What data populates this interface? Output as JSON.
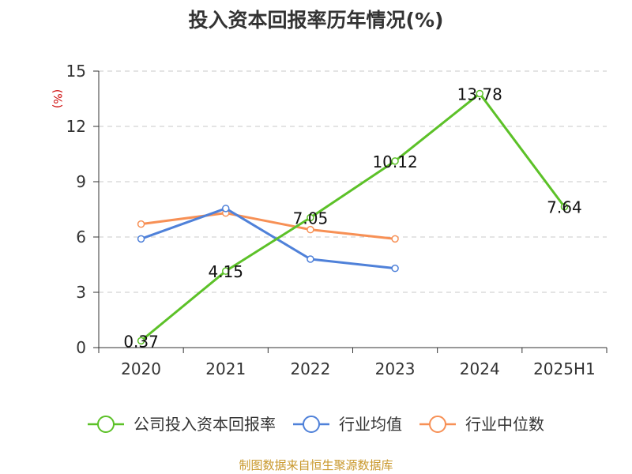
{
  "chart_data": {
    "type": "line",
    "title": "投入资本回报率历年情况(%)",
    "ylabel": "(%)",
    "xlabel": "",
    "categories": [
      "2020",
      "2021",
      "2022",
      "2023",
      "2024",
      "2025H1"
    ],
    "ylim": [
      0,
      15
    ],
    "yticks": [
      "0",
      "3",
      "6",
      "9",
      "12",
      "15"
    ],
    "grid": "horizontal-dashed",
    "legend_position": "bottom",
    "series": [
      {
        "name": "公司投入资本回报率",
        "color": "#5cc128",
        "values": [
          0.37,
          4.15,
          7.05,
          10.12,
          13.78,
          7.64
        ],
        "labels": [
          "0.37",
          "4.15",
          "7.05",
          "10.12",
          "13.78",
          "7.64"
        ]
      },
      {
        "name": "行业均值",
        "color": "#4f81d9",
        "values": [
          5.9,
          7.55,
          4.8,
          4.3,
          null,
          null
        ]
      },
      {
        "name": "行业中位数",
        "color": "#f79055",
        "values": [
          6.7,
          7.3,
          6.4,
          5.9,
          null,
          null
        ]
      }
    ]
  },
  "source": "制图数据来自恒生聚源数据库"
}
